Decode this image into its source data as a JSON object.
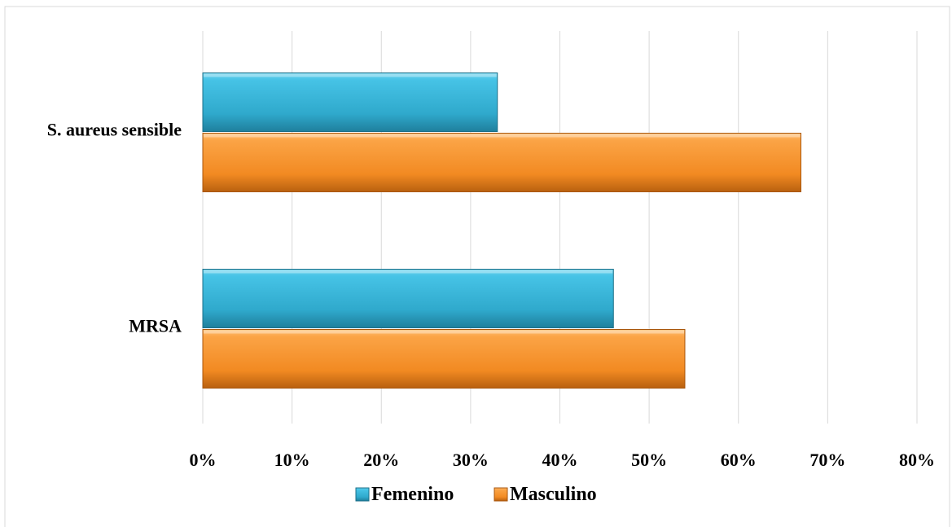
{
  "chart_data": {
    "type": "bar",
    "orientation": "horizontal",
    "categories": [
      "S. aureus sensible",
      "MRSA"
    ],
    "series": [
      {
        "name": "Femenino",
        "values": [
          33,
          46
        ],
        "color": "#3bb6d8"
      },
      {
        "name": "Masculino",
        "values": [
          67,
          54
        ],
        "color": "#f7952e"
      }
    ],
    "xlim": [
      0,
      80
    ],
    "x_ticks": [
      "0%",
      "10%",
      "20%",
      "30%",
      "40%",
      "50%",
      "60%",
      "70%",
      "80%"
    ],
    "grid": true,
    "legend_position": "bottom",
    "title": "",
    "xlabel": "",
    "ylabel": ""
  }
}
